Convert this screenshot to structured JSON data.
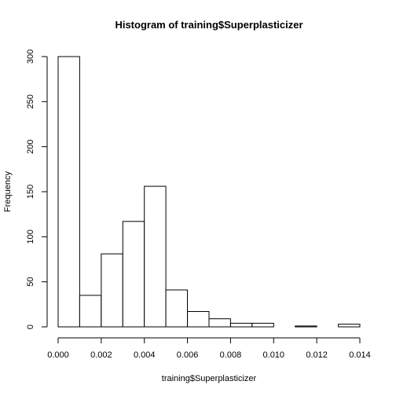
{
  "chart_data": {
    "type": "bar",
    "title": "Histogram of training$Superplasticizer",
    "xlabel": "training$Superplasticizer",
    "ylabel": "Frequency",
    "bin_edges": [
      0.0,
      0.001,
      0.002,
      0.003,
      0.004,
      0.005,
      0.006,
      0.007,
      0.008,
      0.009,
      0.01,
      0.011,
      0.012,
      0.013,
      0.014
    ],
    "values": [
      300,
      35,
      81,
      117,
      156,
      41,
      17,
      9,
      4,
      4,
      0,
      1,
      0,
      3
    ],
    "xlim": [
      0,
      0.014
    ],
    "ylim": [
      0,
      300
    ],
    "x_ticks": [
      0.0,
      0.002,
      0.004,
      0.006,
      0.008,
      0.01,
      0.012,
      0.014
    ],
    "x_tick_labels": [
      "0.000",
      "0.002",
      "0.004",
      "0.006",
      "0.008",
      "0.010",
      "0.012",
      "0.014"
    ],
    "y_ticks": [
      0,
      50,
      100,
      150,
      200,
      250,
      300
    ],
    "y_tick_labels": [
      "0",
      "50",
      "100",
      "150",
      "200",
      "250",
      "300"
    ],
    "grid": false,
    "legend": "none",
    "colors": {
      "bar_fill": "#ffffff",
      "bar_stroke": "#000000"
    }
  }
}
